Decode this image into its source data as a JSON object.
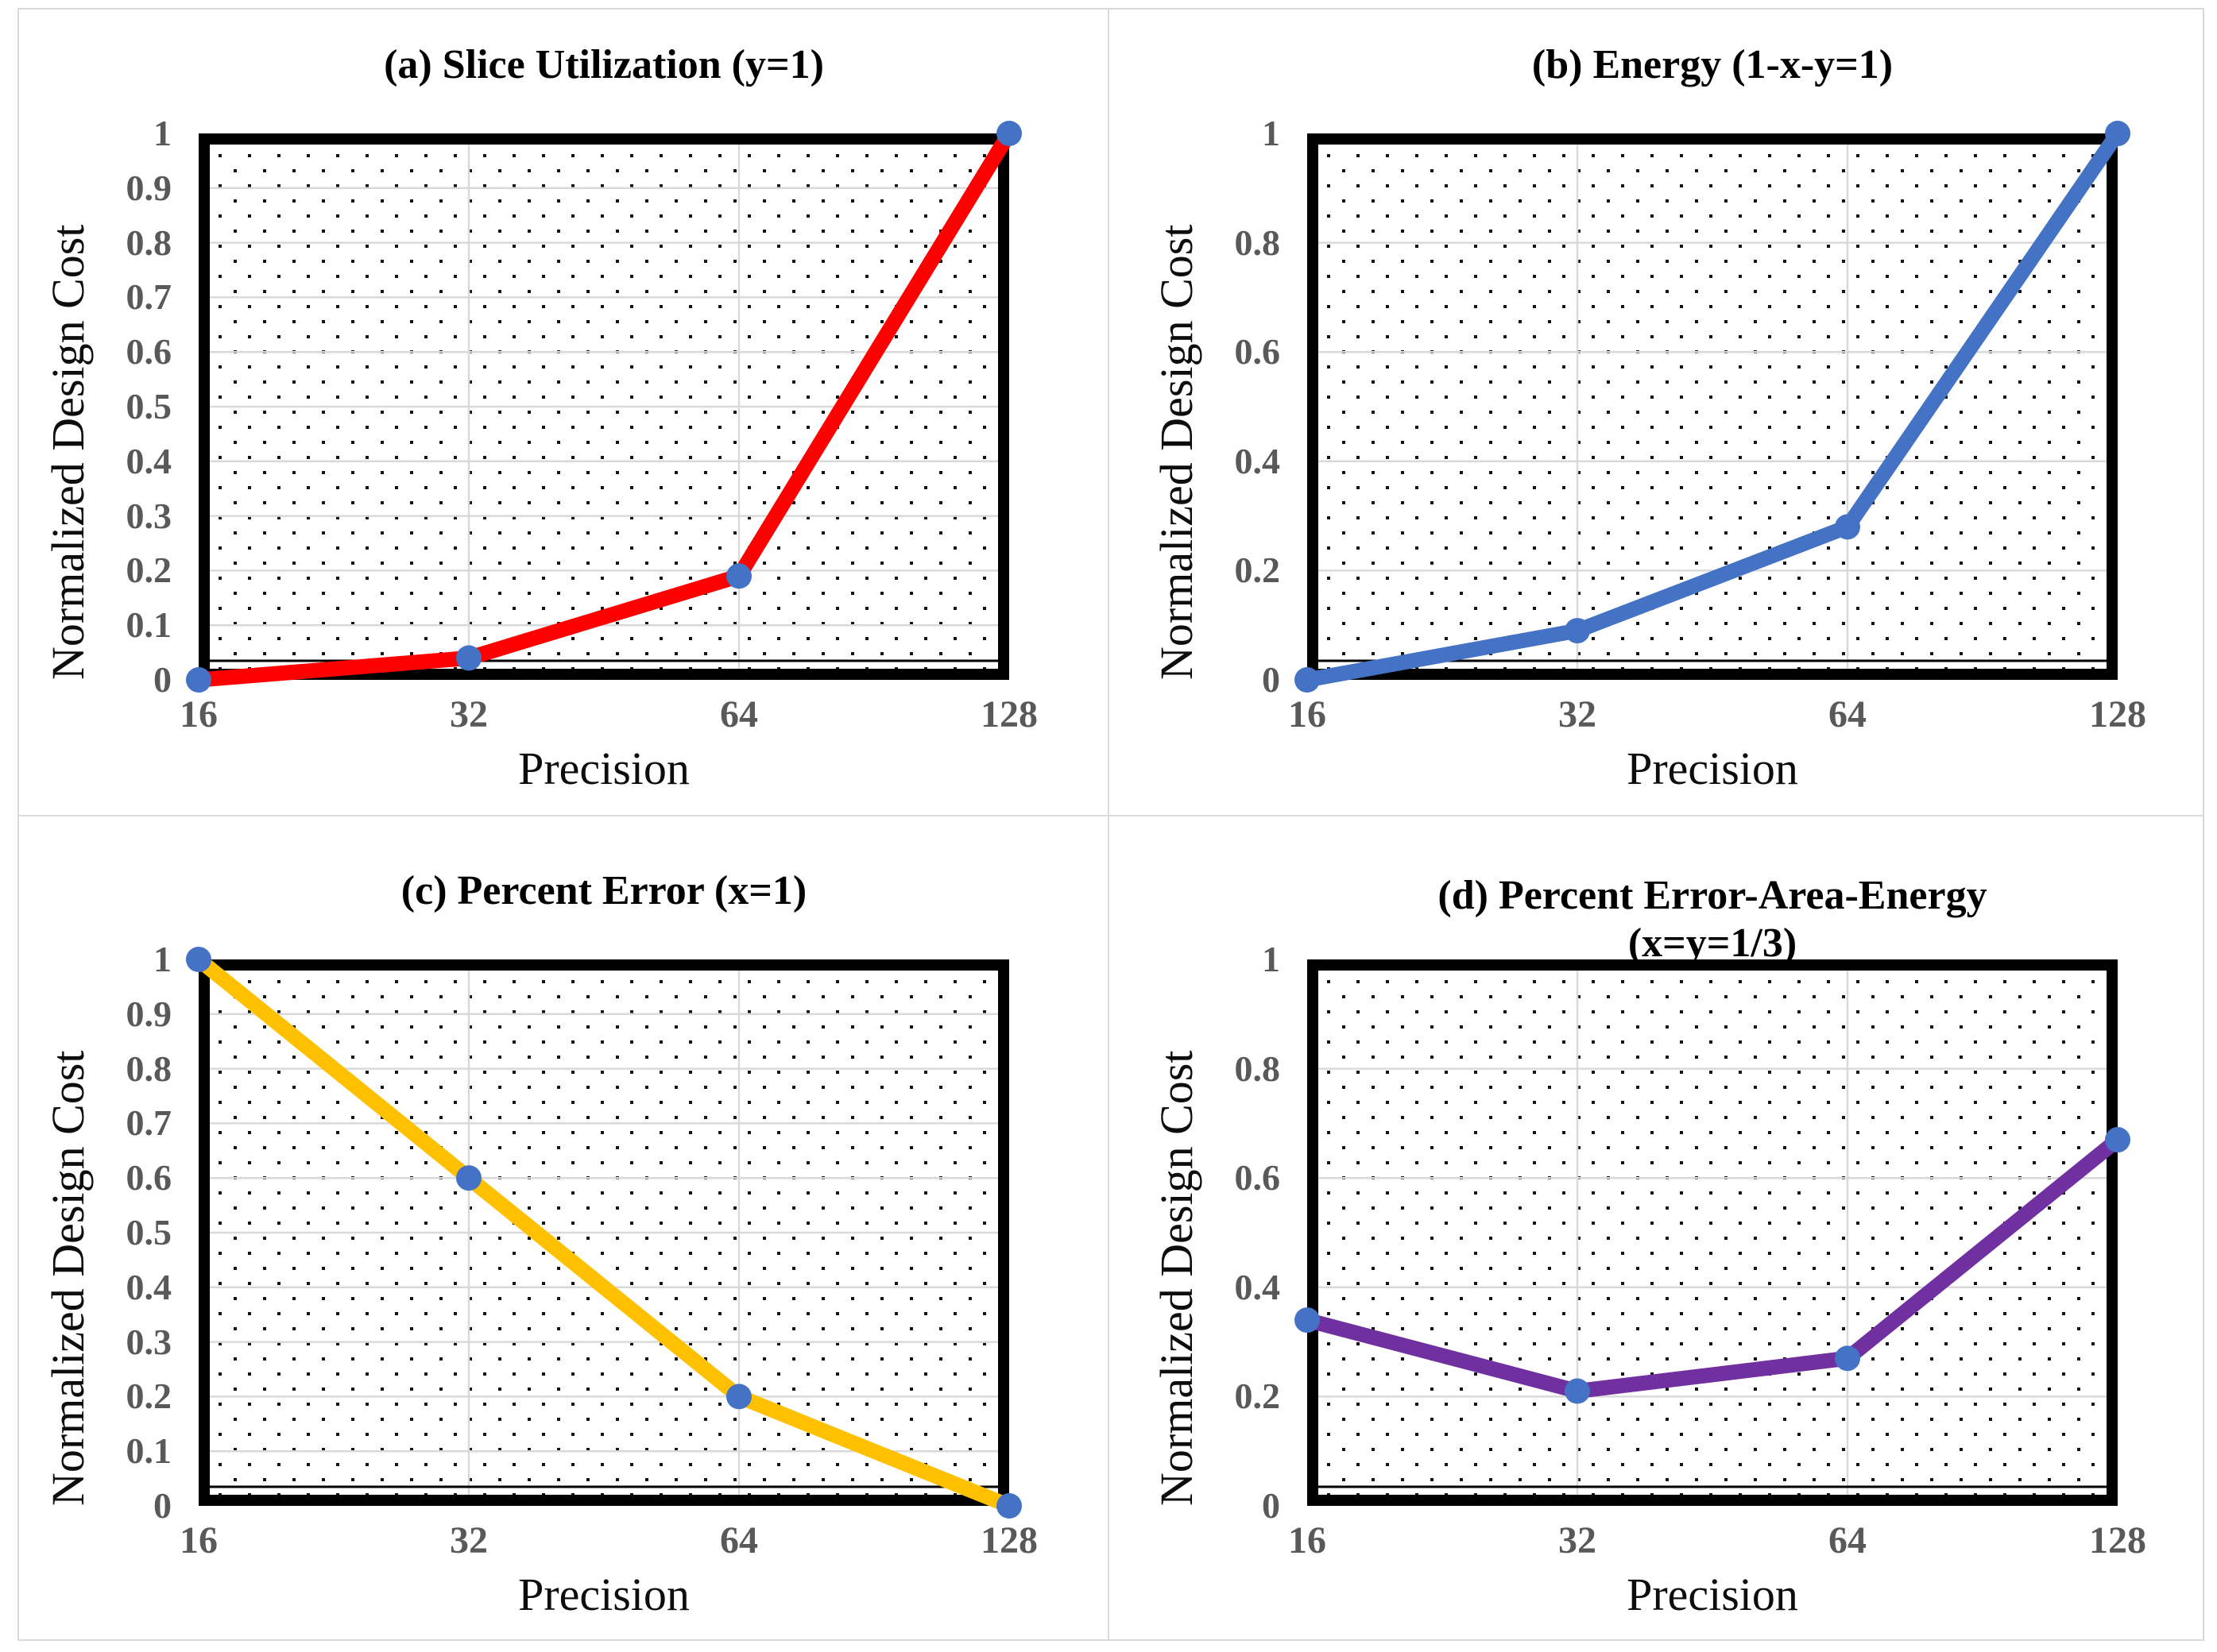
{
  "figure": {
    "y_axis_title": "Normalized Design Cost",
    "x_axis_title": "Precision"
  },
  "chart_data": [
    {
      "type": "line",
      "panel": "a",
      "title": "(a) Slice Utilization (y=1)",
      "title_line2": "",
      "xlabel": "Precision",
      "ylabel": "Normalized Design Cost",
      "categories": [
        "16",
        "32",
        "64",
        "128"
      ],
      "values": [
        0,
        0.04,
        0.19,
        1.0
      ],
      "ylim": [
        0,
        1
      ],
      "ytick_values": [
        0,
        0.1,
        0.2,
        0.3,
        0.4,
        0.5,
        0.6,
        0.7,
        0.8,
        0.9,
        1
      ],
      "ytick_labels": [
        "0",
        "0.1",
        "0.2",
        "0.3",
        "0.4",
        "0.5",
        "0.6",
        "0.7",
        "0.8",
        "0.9",
        "1"
      ],
      "grid_y_step": 0.1,
      "grid_on": true,
      "line_color": "#ff0000",
      "marker_color": "#4472c4"
    },
    {
      "type": "line",
      "panel": "b",
      "title": "(b) Energy (1-x-y=1)",
      "title_line2": "",
      "xlabel": "Precision",
      "ylabel": "Normalized Design Cost",
      "categories": [
        "16",
        "32",
        "64",
        "128"
      ],
      "values": [
        0,
        0.09,
        0.28,
        1.0
      ],
      "ylim": [
        0,
        1
      ],
      "ytick_values": [
        0,
        0.2,
        0.4,
        0.6,
        0.8,
        1
      ],
      "ytick_labels": [
        "0",
        "0.2",
        "0.4",
        "0.6",
        "0.8",
        "1"
      ],
      "grid_y_step": 0.2,
      "grid_on": true,
      "line_color": "#4472c4",
      "marker_color": "#4472c4"
    },
    {
      "type": "line",
      "panel": "c",
      "title": "(c) Percent Error (x=1)",
      "title_line2": "",
      "xlabel": "Precision",
      "ylabel": "Normalized Design Cost",
      "categories": [
        "16",
        "32",
        "64",
        "128"
      ],
      "values": [
        1.0,
        0.6,
        0.2,
        0
      ],
      "ylim": [
        0,
        1
      ],
      "ytick_values": [
        0,
        0.1,
        0.2,
        0.3,
        0.4,
        0.5,
        0.6,
        0.7,
        0.8,
        0.9,
        1
      ],
      "ytick_labels": [
        "0",
        "0.1",
        "0.2",
        "0.3",
        "0.4",
        "0.5",
        "0.6",
        "0.7",
        "0.8",
        "0.9",
        "1"
      ],
      "grid_y_step": 0.1,
      "grid_on": true,
      "line_color": "#ffc000",
      "marker_color": "#4472c4"
    },
    {
      "type": "line",
      "panel": "d",
      "title": "(d) Percent Error-Area-Energy",
      "title_line2": "(x=y=1/3)",
      "xlabel": "Precision",
      "ylabel": "Normalized Design Cost",
      "categories": [
        "16",
        "32",
        "64",
        "128"
      ],
      "values": [
        0.34,
        0.21,
        0.27,
        0.67
      ],
      "ylim": [
        0,
        1
      ],
      "ytick_values": [
        0,
        0.2,
        0.4,
        0.6,
        0.8,
        1
      ],
      "ytick_labels": [
        "0",
        "0.2",
        "0.4",
        "0.6",
        "0.8",
        "1"
      ],
      "grid_y_step": 0.2,
      "grid_on": true,
      "line_color": "#7030a0",
      "marker_color": "#4472c4"
    }
  ],
  "style": {
    "grid_color": "#d9d9d9",
    "dot_color": "#141414",
    "border_color": "#000000",
    "tick_label_color": "#595959"
  }
}
